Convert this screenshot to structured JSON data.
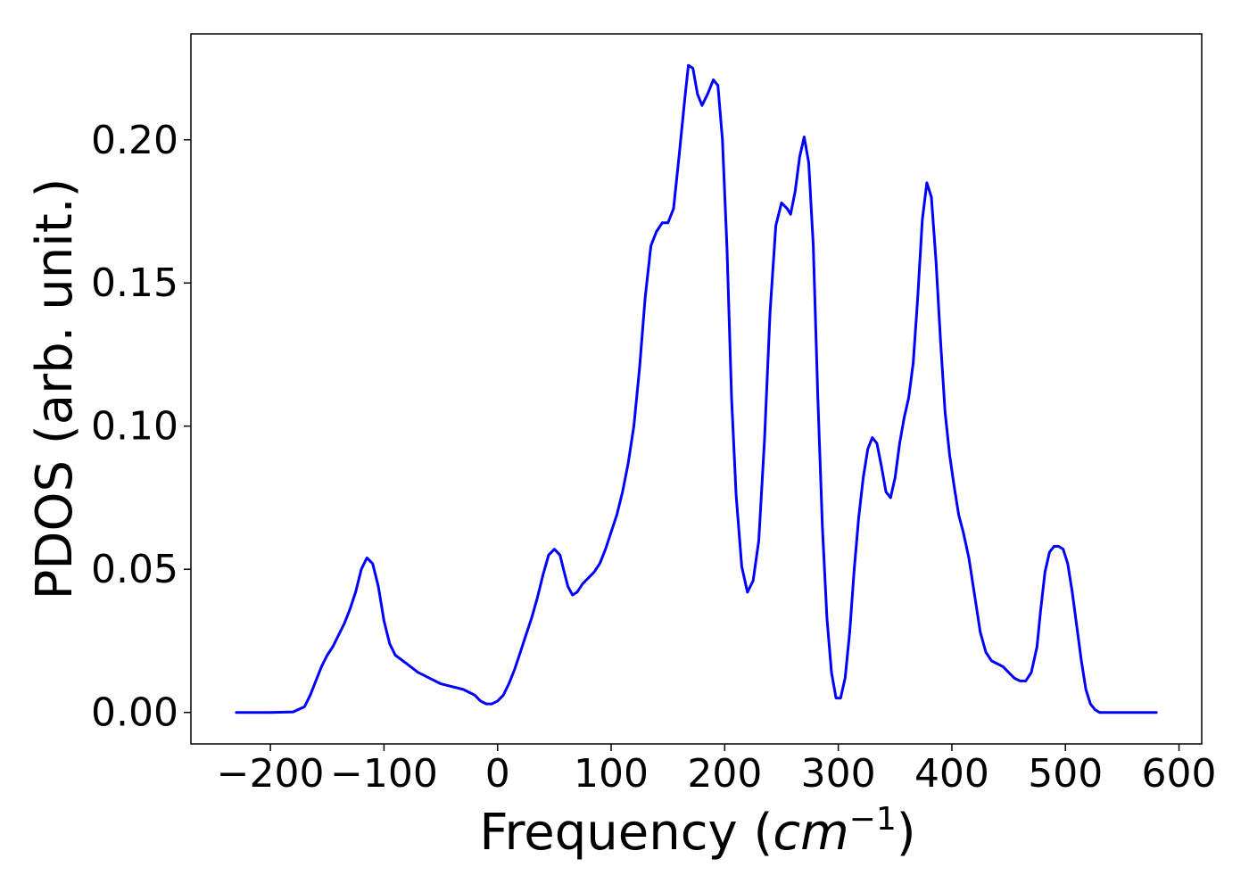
{
  "chart_data": {
    "type": "line",
    "title": "",
    "xlabel": {
      "main": "Frequency (",
      "sym": "cm",
      "sup": "−1",
      "close": ")"
    },
    "ylabel": "PDOS (arb. unit.)",
    "xlim": [
      -270,
      620
    ],
    "ylim": [
      -0.011,
      0.237
    ],
    "xticks": [
      -200,
      -100,
      0,
      100,
      200,
      300,
      400,
      500,
      600
    ],
    "xtick_labels": [
      "−200",
      "−100",
      "0",
      "100",
      "200",
      "300",
      "400",
      "500",
      "600"
    ],
    "yticks": [
      0.0,
      0.05,
      0.1,
      0.15,
      0.2
    ],
    "ytick_labels": [
      "0.00",
      "0.05",
      "0.10",
      "0.15",
      "0.20"
    ],
    "grid": false,
    "line_color": "#0000ff",
    "series": [
      {
        "x": [
          -230,
          -200,
          -180,
          -170,
          -165,
          -160,
          -155,
          -150,
          -145,
          -140,
          -135,
          -130,
          -125,
          -120,
          -115,
          -110,
          -105,
          -100,
          -95,
          -90,
          -80,
          -70,
          -60,
          -50,
          -40,
          -30,
          -20,
          -15,
          -10,
          -5,
          0,
          5,
          10,
          15,
          20,
          25,
          30,
          35,
          40,
          45,
          50,
          55,
          58,
          62,
          66,
          70,
          75,
          80,
          85,
          90,
          95,
          100,
          105,
          110,
          115,
          120,
          125,
          130,
          135,
          140,
          145,
          150,
          155,
          160,
          165,
          168,
          172,
          176,
          180,
          185,
          190,
          194,
          198,
          202,
          206,
          210,
          215,
          220,
          225,
          230,
          235,
          240,
          245,
          250,
          255,
          258,
          262,
          266,
          270,
          274,
          278,
          282,
          286,
          290,
          294,
          298,
          302,
          306,
          310,
          314,
          318,
          322,
          326,
          330,
          334,
          338,
          342,
          346,
          350,
          354,
          358,
          362,
          366,
          370,
          374,
          378,
          382,
          386,
          390,
          394,
          398,
          402,
          406,
          410,
          415,
          420,
          425,
          430,
          435,
          440,
          445,
          450,
          455,
          460,
          465,
          470,
          475,
          478,
          482,
          486,
          490,
          494,
          498,
          502,
          506,
          510,
          514,
          518,
          522,
          526,
          530,
          540,
          560,
          580
        ],
        "y": [
          0.0,
          0.0,
          0.0002,
          0.002,
          0.006,
          0.011,
          0.016,
          0.02,
          0.023,
          0.027,
          0.031,
          0.036,
          0.042,
          0.05,
          0.054,
          0.052,
          0.044,
          0.032,
          0.024,
          0.02,
          0.017,
          0.014,
          0.012,
          0.01,
          0.009,
          0.008,
          0.006,
          0.004,
          0.003,
          0.003,
          0.004,
          0.006,
          0.01,
          0.015,
          0.021,
          0.027,
          0.033,
          0.04,
          0.048,
          0.055,
          0.057,
          0.055,
          0.05,
          0.044,
          0.041,
          0.042,
          0.045,
          0.047,
          0.049,
          0.052,
          0.057,
          0.063,
          0.069,
          0.077,
          0.087,
          0.1,
          0.12,
          0.145,
          0.163,
          0.168,
          0.171,
          0.171,
          0.176,
          0.195,
          0.215,
          0.226,
          0.225,
          0.216,
          0.212,
          0.216,
          0.221,
          0.219,
          0.2,
          0.162,
          0.11,
          0.076,
          0.051,
          0.042,
          0.046,
          0.06,
          0.095,
          0.14,
          0.17,
          0.178,
          0.176,
          0.174,
          0.182,
          0.194,
          0.201,
          0.192,
          0.163,
          0.11,
          0.065,
          0.033,
          0.014,
          0.005,
          0.005,
          0.012,
          0.028,
          0.05,
          0.068,
          0.082,
          0.092,
          0.096,
          0.094,
          0.086,
          0.077,
          0.075,
          0.082,
          0.094,
          0.103,
          0.11,
          0.122,
          0.145,
          0.172,
          0.185,
          0.18,
          0.158,
          0.13,
          0.105,
          0.09,
          0.079,
          0.069,
          0.063,
          0.054,
          0.041,
          0.028,
          0.021,
          0.018,
          0.017,
          0.016,
          0.014,
          0.012,
          0.011,
          0.011,
          0.014,
          0.023,
          0.035,
          0.049,
          0.056,
          0.058,
          0.058,
          0.057,
          0.052,
          0.042,
          0.03,
          0.018,
          0.008,
          0.003,
          0.001,
          0.0,
          0.0,
          0.0,
          0.0
        ]
      }
    ]
  }
}
